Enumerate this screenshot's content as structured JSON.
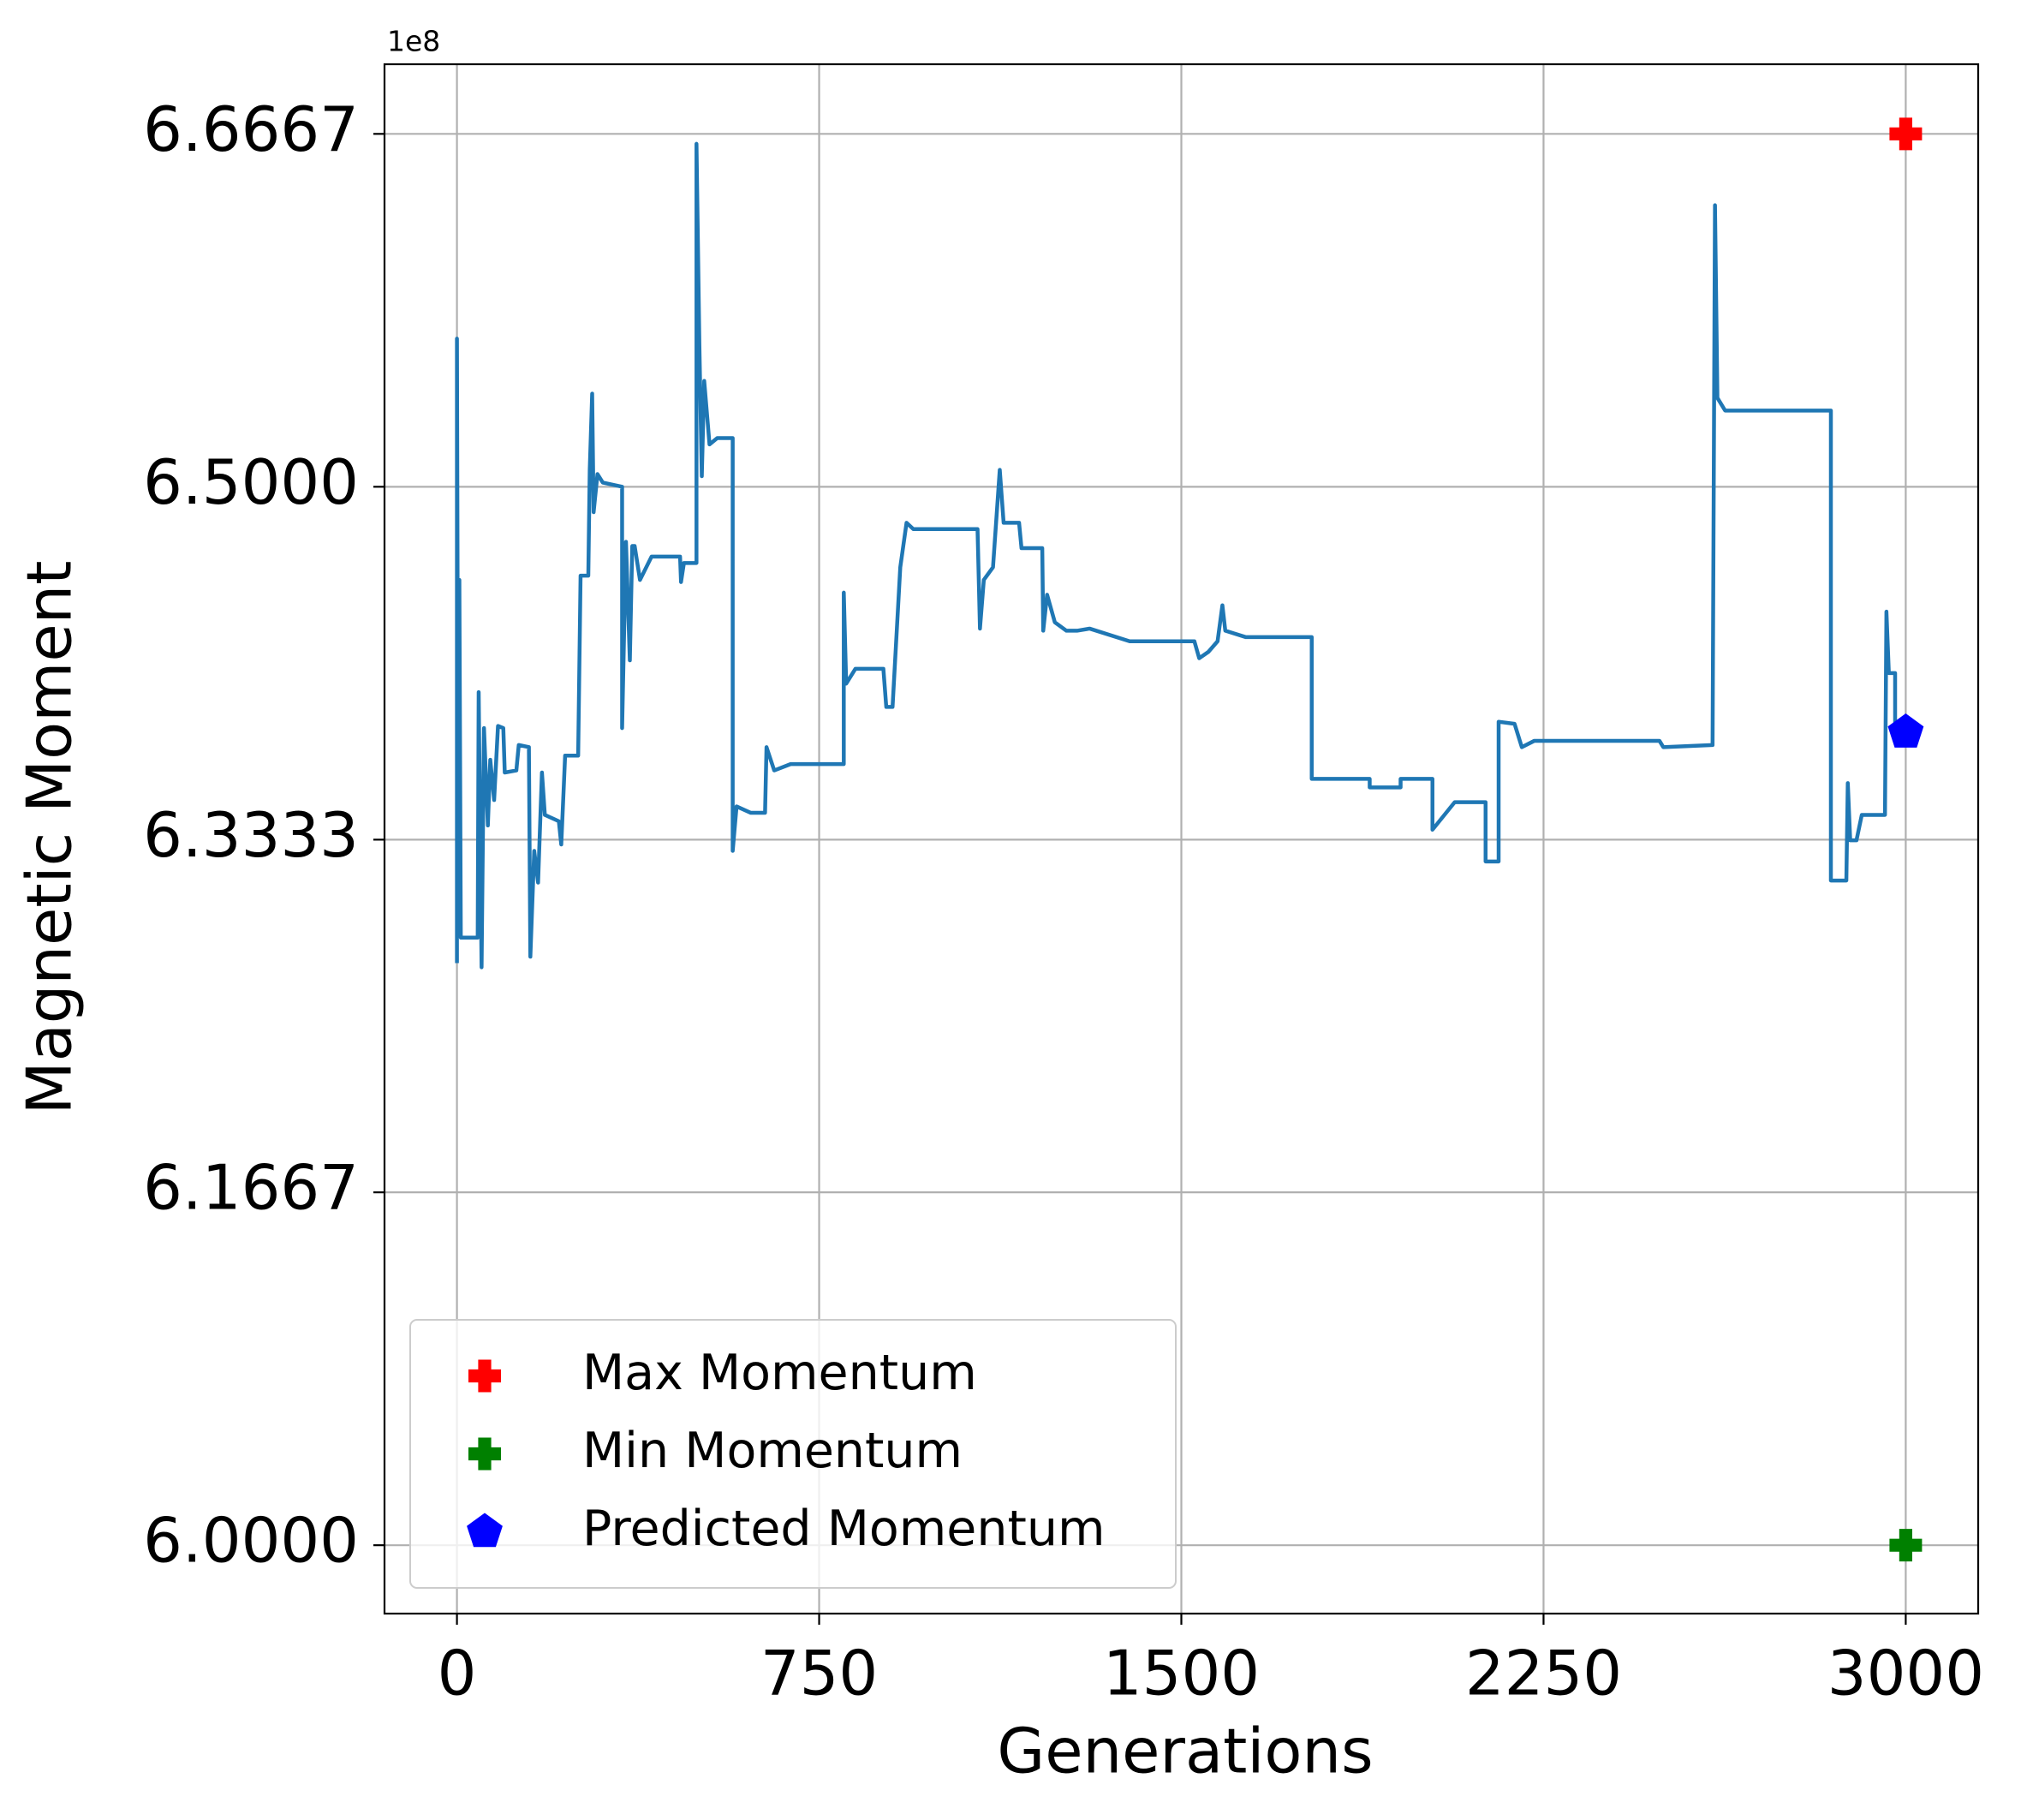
{
  "chart_data": {
    "type": "line",
    "x_label": "Generations",
    "y_label": "Magnetic Moment",
    "offset_text": "1e8",
    "xlim": [
      -150,
      3150
    ],
    "xticks": [
      0,
      750,
      1500,
      2250,
      3000
    ],
    "ylim": [
      5.9677,
      6.6996
    ],
    "yticks": [
      {
        "value": 6.0,
        "label": "6.0000"
      },
      6.1667,
      6.3333,
      {
        "value": 6.5,
        "label": "6.5000"
      },
      6.6667
    ],
    "grid": true,
    "legend": "lower left",
    "x": [
      0,
      0,
      3,
      5,
      8,
      43,
      45,
      51,
      56,
      64,
      69,
      77,
      85,
      96,
      99,
      123,
      128,
      149,
      152,
      160,
      168,
      176,
      182,
      211,
      216,
      224,
      251,
      256,
      272,
      275,
      280,
      283,
      291,
      302,
      342,
      342,
      350,
      358,
      363,
      368,
      379,
      403,
      462,
      464,
      470,
      496,
      496,
      502,
      507,
      512,
      523,
      539,
      571,
      571,
      579,
      608,
      638,
      641,
      657,
      691,
      801,
      801,
      806,
      825,
      883,
      889,
      902,
      918,
      931,
      945,
      1011,
      1078,
      1083,
      1091,
      1110,
      1124,
      1132,
      1164,
      1169,
      1212,
      1214,
      1222,
      1238,
      1262,
      1284,
      1310,
      1393,
      1527,
      1537,
      1556,
      1575,
      1585,
      1591,
      1633,
      1770,
      1770,
      1890,
      1890,
      1954,
      1954,
      2020,
      2020,
      2066,
      2130,
      2130,
      2157,
      2157,
      2190,
      2205,
      2231,
      2490,
      2498,
      2600,
      2605,
      2610,
      2626,
      2845,
      2845,
      2877,
      2880,
      2885,
      2898,
      2909,
      2957,
      2960,
      2965,
      2978,
      2978
    ],
    "series": [
      {
        "color": "#1f77b4",
        "values": [
          6.275,
          6.57,
          6.304,
          6.456,
          6.287,
          6.287,
          6.403,
          6.273,
          6.386,
          6.34,
          6.371,
          6.352,
          6.387,
          6.386,
          6.365,
          6.366,
          6.378,
          6.377,
          6.278,
          6.328,
          6.313,
          6.365,
          6.345,
          6.342,
          6.331,
          6.373,
          6.373,
          6.458,
          6.458,
          6.508,
          6.544,
          6.488,
          6.506,
          6.502,
          6.5,
          6.386,
          6.474,
          6.418,
          6.472,
          6.472,
          6.456,
          6.467,
          6.467,
          6.455,
          6.464,
          6.464,
          6.662,
          6.567,
          6.505,
          6.55,
          6.52,
          6.523,
          6.523,
          6.328,
          6.349,
          6.346,
          6.346,
          6.377,
          6.366,
          6.369,
          6.369,
          6.45,
          6.407,
          6.414,
          6.414,
          6.396,
          6.396,
          6.462,
          6.483,
          6.48,
          6.48,
          6.48,
          6.433,
          6.456,
          6.462,
          6.508,
          6.483,
          6.483,
          6.471,
          6.471,
          6.432,
          6.449,
          6.436,
          6.432,
          6.432,
          6.433,
          6.427,
          6.427,
          6.419,
          6.422,
          6.427,
          6.444,
          6.432,
          6.429,
          6.429,
          6.362,
          6.362,
          6.358,
          6.358,
          6.362,
          6.362,
          6.338,
          6.351,
          6.351,
          6.323,
          6.323,
          6.389,
          6.388,
          6.377,
          6.38,
          6.38,
          6.377,
          6.378,
          6.633,
          6.542,
          6.536,
          6.536,
          6.314,
          6.314,
          6.36,
          6.333,
          6.333,
          6.345,
          6.345,
          6.441,
          6.412,
          6.412,
          6.386
        ]
      }
    ],
    "markers": [
      {
        "name": "Max Momentum",
        "color": "#ff0000",
        "shape": "plus",
        "x": 3000,
        "y": 6.6667
      },
      {
        "name": "Min Momentum",
        "color": "#008000",
        "shape": "plus",
        "x": 3000,
        "y": 6.0
      },
      {
        "name": "Predicted Momentum",
        "color": "#0000ff",
        "shape": "pentagon",
        "x": 3000,
        "y": 6.384
      }
    ]
  }
}
